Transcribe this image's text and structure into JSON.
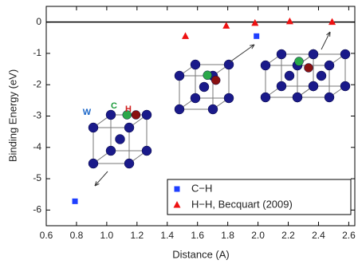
{
  "chart_data": {
    "type": "scatter",
    "x_label": "Distance (A)",
    "y_label": "Binding Energy (eV)",
    "xlim": [
      0.6,
      2.64
    ],
    "ylim": [
      -6.5,
      0.5
    ],
    "xticks": [
      0.6,
      0.8,
      {
        "value": 1.0,
        "label": "1.0"
      },
      1.2,
      1.4,
      1.6,
      1.8,
      {
        "value": 2.0,
        "label": "2.0"
      },
      2.2,
      2.4,
      2.6
    ],
    "yticks": [
      0,
      -1,
      -2,
      -3,
      -4,
      -5,
      -6
    ],
    "series": [
      {
        "name": "C−H",
        "color": "#1f3fff",
        "marker": "square",
        "x": [
          0.79,
          1.99
        ],
        "values": [
          -5.72,
          -0.45
        ]
      },
      {
        "name": "H−H, Becquart (2009)",
        "color": "#ee1111",
        "marker": "triangle",
        "x": [
          1.52,
          1.79,
          1.98,
          2.21,
          2.49
        ],
        "values": [
          -0.45,
          -0.12,
          -0.03,
          0.02,
          0.0
        ]
      }
    ],
    "annotations": [
      {
        "text": "W",
        "color": "#1a66c8"
      },
      {
        "text": "C",
        "color": "#1a9a3a"
      },
      {
        "text": "H",
        "color": "#d02020"
      }
    ]
  }
}
